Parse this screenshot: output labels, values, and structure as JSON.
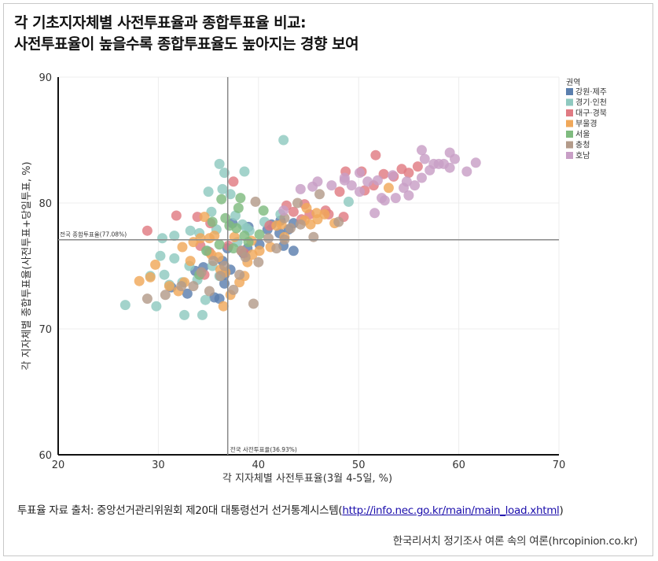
{
  "header": {
    "title_line1": "각 기초지자체별 사전투표율과 종합투표율 비교:",
    "title_line2": "사전투표율이 높을수록 종합투표율도 높아지는 경향 보여"
  },
  "footer": {
    "source_prefix": "투표율 자료 출처: 중앙선거관리위원회 제20대 대통령선거 선거통계시스템(",
    "source_link": "http://info.nec.go.kr/main/main_load.xhtml",
    "source_suffix": ")",
    "credit": "한국리서치 정기조사 여론 속의 여론(hrcopinion.co.kr)"
  },
  "chart_data": {
    "type": "scatter",
    "title": "",
    "xlabel": "각 지자체별 사전투표율(3월 4-5일, %)",
    "ylabel": "각 지자체별 종합투표율(사전투표+당일투표, %)",
    "xlim": [
      20,
      70
    ],
    "ylim": [
      60,
      90
    ],
    "xticks": [
      "20",
      "30",
      "40",
      "50",
      "60",
      "70"
    ],
    "yticks": [
      "60",
      "70",
      "80",
      "90"
    ],
    "grid": true,
    "legend_title": "권역",
    "legend_position": "top-right",
    "reference_lines": {
      "horizontal": {
        "value": 77.08,
        "label": "전국 종합투표율(77.08%)"
      },
      "vertical": {
        "value": 36.93,
        "label": "전국 사전투표율(36.93%)"
      }
    },
    "series": [
      {
        "name": "강원·제주",
        "color": "#5b7fae",
        "points": [
          [
            31.3,
            73.3
          ],
          [
            32.9,
            72.8
          ],
          [
            33.7,
            74.6
          ],
          [
            34.5,
            74.9
          ],
          [
            35.6,
            72.5
          ],
          [
            36.1,
            72.4
          ],
          [
            36.6,
            73.6
          ],
          [
            37.2,
            74.7
          ],
          [
            36.9,
            76.4
          ],
          [
            38.5,
            76.0
          ],
          [
            38.9,
            76.4
          ],
          [
            40.1,
            76.7
          ],
          [
            40.9,
            77.9
          ],
          [
            41.3,
            78.3
          ],
          [
            42.1,
            77.6
          ],
          [
            42.5,
            76.6
          ],
          [
            43.5,
            76.2
          ],
          [
            37.4,
            78.4
          ],
          [
            42.2,
            78.6
          ],
          [
            43.0,
            77.9
          ],
          [
            43.5,
            78.4
          ],
          [
            36.4,
            75.4
          ],
          [
            36.6,
            74.3
          ],
          [
            39.0,
            78.1
          ]
        ]
      },
      {
        "name": "경기·인천",
        "color": "#8fc9c0",
        "points": [
          [
            26.7,
            71.9
          ],
          [
            29.8,
            71.8
          ],
          [
            29.2,
            74.2
          ],
          [
            30.6,
            74.3
          ],
          [
            30.2,
            75.8
          ],
          [
            31.6,
            75.6
          ],
          [
            31.1,
            73.5
          ],
          [
            32.6,
            71.1
          ],
          [
            34.4,
            71.1
          ],
          [
            33.9,
            73.9
          ],
          [
            34.7,
            72.3
          ],
          [
            32.4,
            73.7
          ],
          [
            33.1,
            75.0
          ],
          [
            34.1,
            77.6
          ],
          [
            34.9,
            76.2
          ],
          [
            35.3,
            79.3
          ],
          [
            35.8,
            77.9
          ],
          [
            35.0,
            80.9
          ],
          [
            36.1,
            83.1
          ],
          [
            36.6,
            82.4
          ],
          [
            36.4,
            81.1
          ],
          [
            37.2,
            80.7
          ],
          [
            37.7,
            79.0
          ],
          [
            38.4,
            78.3
          ],
          [
            38.8,
            78.0
          ],
          [
            38.6,
            82.5
          ],
          [
            39.1,
            77.8
          ],
          [
            42.5,
            85.0
          ],
          [
            40.6,
            78.5
          ],
          [
            42.2,
            79.1
          ],
          [
            49.0,
            80.1
          ],
          [
            30.4,
            77.2
          ],
          [
            33.2,
            77.8
          ],
          [
            31.6,
            77.4
          ],
          [
            35.4,
            75.0
          ],
          [
            37.9,
            76.9
          ],
          [
            36.1,
            74.2
          ]
        ]
      },
      {
        "name": "대구·경북",
        "color": "#e07b83",
        "points": [
          [
            28.9,
            77.8
          ],
          [
            31.8,
            79.0
          ],
          [
            33.9,
            78.9
          ],
          [
            34.2,
            76.6
          ],
          [
            34.6,
            74.3
          ],
          [
            35.1,
            76.1
          ],
          [
            35.2,
            78.4
          ],
          [
            37.5,
            81.7
          ],
          [
            37.0,
            76.6
          ],
          [
            38.3,
            76.2
          ],
          [
            38.6,
            76.0
          ],
          [
            41.1,
            78.2
          ],
          [
            42.8,
            79.8
          ],
          [
            43.5,
            79.3
          ],
          [
            44.3,
            78.7
          ],
          [
            45.1,
            79.1
          ],
          [
            46.7,
            79.4
          ],
          [
            47.0,
            79.1
          ],
          [
            48.1,
            80.9
          ],
          [
            48.7,
            82.5
          ],
          [
            50.3,
            82.5
          ],
          [
            51.7,
            83.8
          ],
          [
            52.5,
            82.3
          ],
          [
            51.5,
            81.4
          ],
          [
            53.5,
            82.1
          ],
          [
            54.3,
            82.7
          ],
          [
            55.0,
            82.4
          ],
          [
            55.9,
            82.9
          ],
          [
            50.6,
            81.0
          ],
          [
            44.6,
            79.9
          ],
          [
            48.5,
            78.9
          ]
        ]
      },
      {
        "name": "부울경",
        "color": "#f0a85a",
        "points": [
          [
            28.1,
            73.8
          ],
          [
            29.2,
            74.1
          ],
          [
            29.7,
            75.1
          ],
          [
            31.1,
            73.4
          ],
          [
            32.0,
            73.0
          ],
          [
            32.6,
            73.7
          ],
          [
            33.2,
            75.4
          ],
          [
            33.5,
            76.9
          ],
          [
            34.2,
            77.2
          ],
          [
            34.6,
            78.9
          ],
          [
            35.1,
            77.2
          ],
          [
            35.6,
            77.4
          ],
          [
            36.0,
            75.7
          ],
          [
            36.2,
            74.7
          ],
          [
            36.7,
            74.5
          ],
          [
            37.2,
            72.7
          ],
          [
            36.5,
            71.8
          ],
          [
            38.1,
            73.7
          ],
          [
            38.6,
            74.2
          ],
          [
            38.9,
            75.3
          ],
          [
            39.3,
            77.0
          ],
          [
            39.4,
            75.9
          ],
          [
            40.1,
            76.2
          ],
          [
            41.2,
            76.5
          ],
          [
            41.8,
            78.2
          ],
          [
            42.6,
            77.3
          ],
          [
            42.3,
            78.3
          ],
          [
            44.6,
            78.6
          ],
          [
            45.2,
            78.3
          ],
          [
            45.9,
            78.7
          ],
          [
            46.6,
            79.1
          ],
          [
            47.6,
            78.4
          ],
          [
            44.8,
            79.6
          ],
          [
            45.8,
            79.2
          ],
          [
            53.0,
            81.2
          ],
          [
            35.3,
            75.9
          ],
          [
            37.6,
            77.3
          ],
          [
            32.4,
            76.5
          ]
        ]
      },
      {
        "name": "서울",
        "color": "#7fbb7f",
        "points": [
          [
            34.1,
            74.3
          ],
          [
            34.8,
            76.2
          ],
          [
            35.4,
            78.5
          ],
          [
            36.1,
            76.7
          ],
          [
            36.7,
            78.8
          ],
          [
            37.1,
            78.2
          ],
          [
            37.5,
            76.4
          ],
          [
            38.0,
            79.6
          ],
          [
            38.2,
            80.4
          ],
          [
            38.6,
            77.4
          ],
          [
            39.0,
            76.9
          ],
          [
            40.5,
            79.4
          ],
          [
            40.1,
            77.5
          ],
          [
            36.3,
            80.3
          ],
          [
            37.8,
            78.0
          ]
        ]
      },
      {
        "name": "충청",
        "color": "#b39b8a",
        "points": [
          [
            28.9,
            72.4
          ],
          [
            30.7,
            72.7
          ],
          [
            32.3,
            73.4
          ],
          [
            33.5,
            73.4
          ],
          [
            34.3,
            74.5
          ],
          [
            35.1,
            73.0
          ],
          [
            35.5,
            75.4
          ],
          [
            36.2,
            74.2
          ],
          [
            37.5,
            73.1
          ],
          [
            38.1,
            74.3
          ],
          [
            38.7,
            75.7
          ],
          [
            39.5,
            72.0
          ],
          [
            40.0,
            75.3
          ],
          [
            41.0,
            77.2
          ],
          [
            41.8,
            76.4
          ],
          [
            42.6,
            77.1
          ],
          [
            43.2,
            78.0
          ],
          [
            43.9,
            80.0
          ],
          [
            44.2,
            78.3
          ],
          [
            45.5,
            77.3
          ],
          [
            46.1,
            80.7
          ],
          [
            48.0,
            78.5
          ],
          [
            39.7,
            80.1
          ],
          [
            42.6,
            78.8
          ],
          [
            36.6,
            75.0
          ],
          [
            38.3,
            76.2
          ]
        ]
      },
      {
        "name": "호남",
        "color": "#c89fc6",
        "points": [
          [
            42.5,
            79.4
          ],
          [
            44.2,
            81.1
          ],
          [
            45.4,
            81.3
          ],
          [
            45.9,
            81.7
          ],
          [
            47.3,
            81.4
          ],
          [
            48.6,
            81.8
          ],
          [
            49.3,
            81.4
          ],
          [
            50.1,
            82.4
          ],
          [
            50.9,
            81.7
          ],
          [
            51.6,
            79.2
          ],
          [
            51.9,
            81.8
          ],
          [
            52.3,
            80.4
          ],
          [
            53.4,
            82.2
          ],
          [
            53.7,
            80.4
          ],
          [
            54.5,
            81.2
          ],
          [
            55.0,
            80.6
          ],
          [
            54.8,
            81.7
          ],
          [
            55.6,
            81.4
          ],
          [
            56.3,
            82.0
          ],
          [
            57.1,
            82.6
          ],
          [
            57.5,
            83.1
          ],
          [
            58.0,
            83.1
          ],
          [
            58.5,
            83.1
          ],
          [
            59.1,
            82.8
          ],
          [
            59.6,
            83.5
          ],
          [
            59.1,
            84.0
          ],
          [
            56.3,
            84.2
          ],
          [
            60.8,
            82.5
          ],
          [
            61.7,
            83.2
          ],
          [
            56.6,
            83.5
          ],
          [
            48.6,
            82.0
          ],
          [
            52.6,
            80.2
          ],
          [
            50.1,
            80.9
          ]
        ]
      }
    ]
  }
}
